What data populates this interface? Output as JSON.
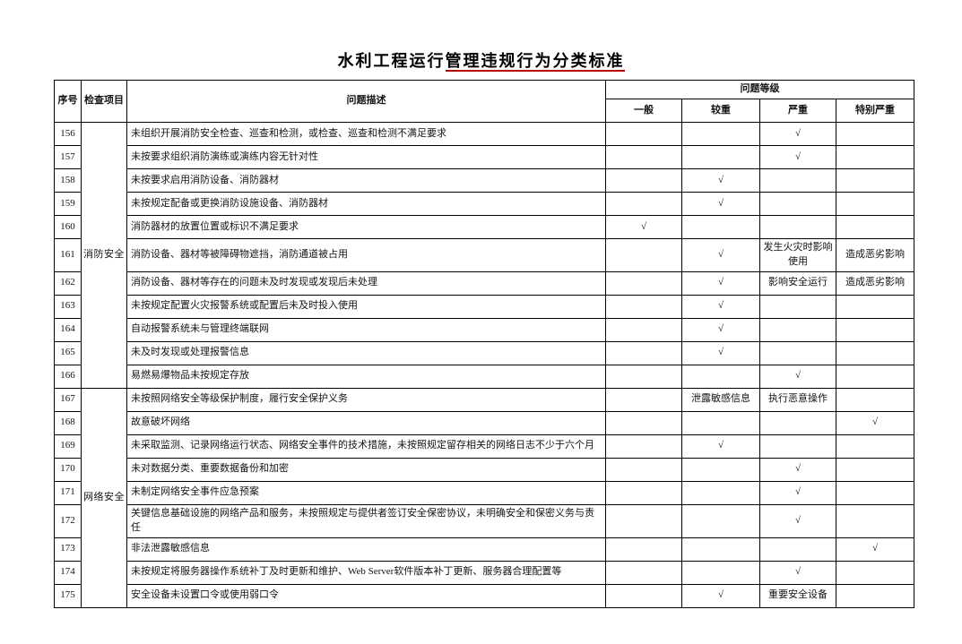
{
  "page": {
    "title": {
      "full": "水利工程运行管理违规行为分类标准",
      "plain_part": "水利工程运行",
      "underlined_part": "管理违规行为分类标准",
      "underline_color": "#b40000"
    },
    "background_color": "#ffffff",
    "border_color": "#000000"
  },
  "table": {
    "headers": {
      "seq": "序号",
      "category": "检查项目",
      "description": "问题描述",
      "level_group": "问题等级",
      "levels": [
        "一般",
        "较重",
        "严重",
        "特别严重"
      ]
    },
    "check_mark": "√",
    "groups": [
      {
        "label": "消防安全",
        "row_span": 11,
        "seq_range": "156-166"
      },
      {
        "label": "网络安全",
        "row_span": 9,
        "seq_range": "167-175"
      }
    ],
    "rows": [
      {
        "seq": "156",
        "group": {
          "label": "消防安全",
          "span": 11
        },
        "desc": "未组织开展消防安全检查、巡查和检测，或检查、巡查和检测不满足要求",
        "levels": [
          "",
          "",
          "√",
          ""
        ]
      },
      {
        "seq": "157",
        "desc": "未按要求组织消防演练或演练内容无针对性",
        "levels": [
          "",
          "",
          "√",
          ""
        ]
      },
      {
        "seq": "158",
        "desc": "未按要求启用消防设备、消防器材",
        "levels": [
          "",
          "√",
          "",
          ""
        ]
      },
      {
        "seq": "159",
        "desc": "未按规定配备或更换消防设施设备、消防器材",
        "levels": [
          "",
          "√",
          "",
          ""
        ]
      },
      {
        "seq": "160",
        "desc": "消防器材的放置位置或标识不满足要求",
        "levels": [
          "√",
          "",
          "",
          ""
        ]
      },
      {
        "seq": "161",
        "desc": "消防设备、器材等被障碍物遮挡，消防通道被占用",
        "levels": [
          "",
          "√",
          "发生火灾时影响使用",
          "造成恶劣影响"
        ]
      },
      {
        "seq": "162",
        "desc": "消防设备、器材等存在的问题未及时发现或发现后未处理",
        "levels": [
          "",
          "√",
          "影响安全运行",
          "造成恶劣影响"
        ]
      },
      {
        "seq": "163",
        "desc": "未按规定配置火灾报警系统或配置后未及时投入使用",
        "levels": [
          "",
          "√",
          "",
          ""
        ]
      },
      {
        "seq": "164",
        "desc": "自动报警系统未与管理终端联网",
        "levels": [
          "",
          "√",
          "",
          ""
        ]
      },
      {
        "seq": "165",
        "desc": "未及时发现或处理报警信息",
        "levels": [
          "",
          "√",
          "",
          ""
        ]
      },
      {
        "seq": "166",
        "desc": "易燃易爆物品未按规定存放",
        "levels": [
          "",
          "",
          "√",
          ""
        ]
      },
      {
        "seq": "167",
        "group": {
          "label": "网络安全",
          "span": 9
        },
        "desc": "未按照网络安全等级保护制度，履行安全保护义务",
        "levels": [
          "",
          "泄露敏感信息",
          "执行恶意操作",
          ""
        ]
      },
      {
        "seq": "168",
        "desc": "故意破坏网络",
        "levels": [
          "",
          "",
          "",
          "√"
        ]
      },
      {
        "seq": "169",
        "desc": "未采取监测、记录网络运行状态、网络安全事件的技术措施，未按照规定留存相关的网络日志不少于六个月",
        "levels": [
          "",
          "√",
          "",
          ""
        ]
      },
      {
        "seq": "170",
        "desc": "未对数据分类、重要数据备份和加密",
        "levels": [
          "",
          "",
          "√",
          ""
        ]
      },
      {
        "seq": "171",
        "desc": "未制定网络安全事件应急预案",
        "levels": [
          "",
          "",
          "√",
          ""
        ]
      },
      {
        "seq": "172",
        "desc": "关键信息基础设施的网络产品和服务，未按照规定与提供者签订安全保密协议，未明确安全和保密义务与责任",
        "levels": [
          "",
          "",
          "√",
          ""
        ]
      },
      {
        "seq": "173",
        "desc": "非法泄露敏感信息",
        "levels": [
          "",
          "",
          "",
          "√"
        ]
      },
      {
        "seq": "174",
        "desc": "未按规定将服务器操作系统补丁及时更新和维护、Web Server软件版本补丁更新、服务器合理配置等",
        "levels": [
          "",
          "",
          "√",
          ""
        ]
      },
      {
        "seq": "175",
        "desc": "安全设备未设置口令或使用弱口令",
        "levels": [
          "",
          "√",
          "重要安全设备",
          ""
        ]
      }
    ]
  }
}
